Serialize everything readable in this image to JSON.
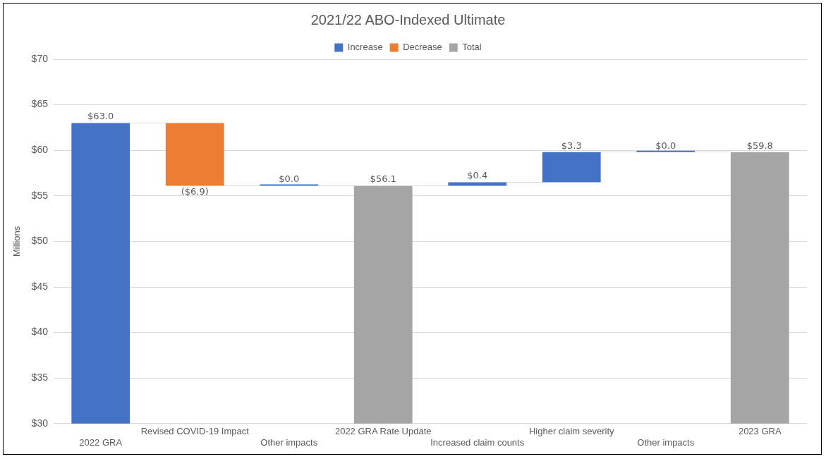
{
  "chart_data": {
    "type": "bar",
    "title": "2021/22 ABO-Indexed Ultimate",
    "ylabel": "Millions",
    "categories": [
      "2022 GRA",
      "Revised COVID-19 Impact",
      "Other impacts",
      "2022 GRA Rate Update",
      "Increased claim counts",
      "Higher claim severity",
      "Other impacts",
      "2023 GRA"
    ],
    "series": [
      {
        "name": "Increase",
        "color": "#4472c4",
        "values": [
          63,
          null,
          0,
          null,
          0.4,
          3.3,
          0,
          null
        ],
        "base": [
          null,
          null,
          56.1,
          null,
          56.1,
          56.5,
          59.8,
          null
        ]
      },
      {
        "name": "Decrease",
        "color": "#ed7d31",
        "values": [
          null,
          -6.9,
          null,
          null,
          null,
          null,
          null,
          null
        ],
        "base": [
          null,
          63,
          null,
          null,
          null,
          null,
          null,
          null
        ]
      },
      {
        "name": "Total",
        "color": "#a5a5a5",
        "values": [
          null,
          null,
          null,
          56.1,
          null,
          null,
          null,
          59.8
        ]
      }
    ],
    "value_labels": [
      "$63.0",
      "($6.9)",
      "$0.0",
      "$56.1",
      "$0.4",
      "$3.3",
      "$0.0",
      "$59.8"
    ],
    "ylim": [
      30,
      70
    ],
    "yticks": [
      {
        "value": 30,
        "label": "$30"
      },
      {
        "value": 35,
        "label": "$35"
      },
      {
        "value": 40,
        "label": "$40"
      },
      {
        "value": 45,
        "label": "$45"
      },
      {
        "value": 50,
        "label": "$50"
      },
      {
        "value": 55,
        "label": "$55"
      },
      {
        "value": 60,
        "label": "$60"
      },
      {
        "value": 65,
        "label": "$65"
      },
      {
        "value": 70,
        "label": "$70"
      }
    ],
    "grid": "y",
    "legend": "top"
  }
}
